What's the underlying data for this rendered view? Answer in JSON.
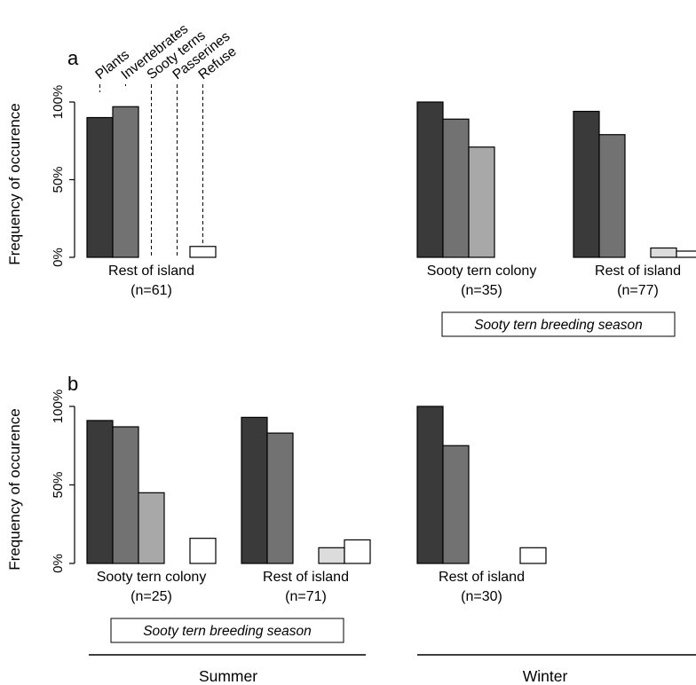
{
  "chart_data": [
    {
      "panel": "a",
      "type": "bar",
      "ylabel": "Frequency of occurence",
      "yticks": [
        "0%",
        "50%",
        "100%"
      ],
      "ylim": [
        0,
        100
      ],
      "series": [
        {
          "name": "Plants",
          "color": "#3a3a3a"
        },
        {
          "name": "Invertebrates",
          "color": "#727272"
        },
        {
          "name": "Sooty terns",
          "color": "#a8a8a8"
        },
        {
          "name": "Passerines",
          "color": "#dcdcdc"
        },
        {
          "name": "Refuse",
          "color": "#ffffff"
        }
      ],
      "groups": [
        {
          "label": "Rest of island",
          "n": "(n=61)",
          "season": "Summer",
          "values": [
            90,
            97,
            0,
            0,
            7
          ]
        },
        {
          "label": "Sooty tern colony",
          "n": "(n=35)",
          "season": "Winter",
          "values": [
            100,
            89,
            71,
            0,
            0
          ]
        },
        {
          "label": "Rest of island",
          "n": "(n=77)",
          "season": "Winter",
          "values": [
            94,
            79,
            0,
            6,
            4
          ]
        }
      ],
      "season_box": "Sooty tern breeding season"
    },
    {
      "panel": "b",
      "type": "bar",
      "ylabel": "Frequency of occurence",
      "yticks": [
        "0%",
        "50%",
        "100%"
      ],
      "ylim": [
        0,
        100
      ],
      "groups": [
        {
          "label": "Sooty tern colony",
          "n": "(n=25)",
          "season": "Summer",
          "values": [
            91,
            87,
            45,
            0,
            16
          ]
        },
        {
          "label": "Rest of island",
          "n": "(n=71)",
          "season": "Summer",
          "values": [
            93,
            83,
            0,
            10,
            15
          ]
        },
        {
          "label": "Rest of island",
          "n": "(n=30)",
          "season": "Winter",
          "values": [
            100,
            75,
            0,
            0,
            10
          ]
        }
      ],
      "season_box": "Sooty tern breeding season"
    }
  ],
  "seasons": [
    "Summer",
    "Winter"
  ]
}
